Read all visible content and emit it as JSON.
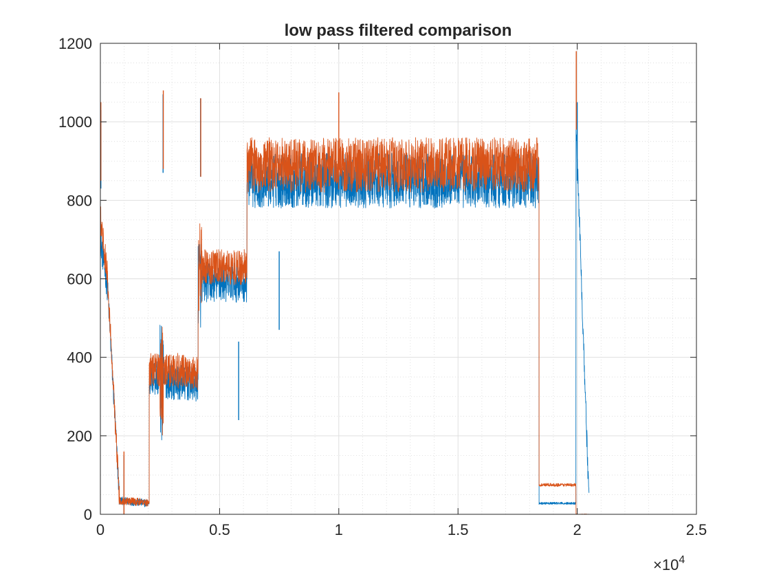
{
  "chart_data": {
    "type": "line",
    "title": "low pass filtered comparison",
    "xlabel": "",
    "ylabel": "",
    "xlim": [
      0,
      25000
    ],
    "ylim": [
      0,
      1200
    ],
    "x_ticks": [
      0,
      5000,
      10000,
      15000,
      20000,
      25000
    ],
    "x_tick_labels": [
      "0",
      "0.5",
      "1",
      "1.5",
      "2",
      "2.5"
    ],
    "x_exponent_label": "×10",
    "x_exponent_power": "4",
    "y_ticks": [
      0,
      200,
      400,
      600,
      800,
      1000,
      1200
    ],
    "y_tick_labels": [
      "0",
      "200",
      "400",
      "600",
      "800",
      "1000",
      "1200"
    ],
    "grid": true,
    "minor_grid": true,
    "box": true,
    "series": [
      {
        "color": "#0072BD",
        "segments": [
          {
            "x": [
              0,
              300
            ],
            "base": [
              700,
              580
            ],
            "noise": 40
          },
          {
            "x": [
              300,
              800
            ],
            "base": [
              580,
              40
            ],
            "noise": 30
          },
          {
            "x": [
              800,
              2000
            ],
            "base": [
              35,
              28
            ],
            "noise": 10
          },
          {
            "x": [
              2000,
              2050
            ],
            "base": [
              28,
              28
            ],
            "noise": 3
          },
          {
            "x": [
              2050,
              2500
            ],
            "base": [
              350,
              350
            ],
            "noise": 50
          },
          {
            "x": [
              2500,
              2650
            ],
            "base": [
              350,
              300
            ],
            "noise": 150
          },
          {
            "x": [
              2650,
              4100
            ],
            "base": [
              340,
              330
            ],
            "noise": 45
          },
          {
            "x": [
              4100,
              4250
            ],
            "base": [
              600,
              590
            ],
            "noise": 120
          },
          {
            "x": [
              4250,
              6150
            ],
            "base": [
              590,
              590
            ],
            "noise": 50
          },
          {
            "x": [
              6150,
              18400
            ],
            "base": [
              850,
              850
            ],
            "noise": 70
          },
          {
            "x": [
              18400,
              19950
            ],
            "base": [
              28,
              28
            ],
            "noise": 3
          },
          {
            "x": [
              19950,
              20500
            ],
            "base": [
              1000,
              20
            ],
            "noise": 30
          }
        ],
        "spikes": [
          {
            "x": 20,
            "y": 1030
          },
          {
            "x": 990,
            "y": 150
          },
          {
            "x": 2630,
            "y": 1070
          },
          {
            "x": 4200,
            "y": 1060
          },
          {
            "x": 7500,
            "y": 670
          },
          {
            "x": 5800,
            "y": 440
          },
          {
            "x": 20000,
            "y": 1050
          }
        ]
      },
      {
        "color": "#D95319",
        "segments": [
          {
            "x": [
              0,
              300
            ],
            "base": [
              760,
              600
            ],
            "noise": 40
          },
          {
            "x": [
              300,
              800
            ],
            "base": [
              600,
              40
            ],
            "noise": 30
          },
          {
            "x": [
              800,
              2000
            ],
            "base": [
              35,
              30
            ],
            "noise": 10
          },
          {
            "x": [
              2000,
              2050
            ],
            "base": [
              30,
              30
            ],
            "noise": 3
          },
          {
            "x": [
              2050,
              2500
            ],
            "base": [
              370,
              370
            ],
            "noise": 45
          },
          {
            "x": [
              2500,
              2650
            ],
            "base": [
              370,
              330
            ],
            "noise": 150
          },
          {
            "x": [
              2650,
              4100
            ],
            "base": [
              370,
              360
            ],
            "noise": 45
          },
          {
            "x": [
              4100,
              4250
            ],
            "base": [
              630,
              620
            ],
            "noise": 120
          },
          {
            "x": [
              4250,
              6150
            ],
            "base": [
              630,
              630
            ],
            "noise": 45
          },
          {
            "x": [
              6150,
              18400
            ],
            "base": [
              890,
              890
            ],
            "noise": 70
          },
          {
            "x": [
              18400,
              19950
            ],
            "base": [
              75,
              75
            ],
            "noise": 4
          },
          {
            "x": [
              19950,
              20500
            ],
            "base": [
              0,
              0
            ],
            "noise": 1
          }
        ],
        "spikes": [
          {
            "x": 20,
            "y": 1050
          },
          {
            "x": 990,
            "y": 160
          },
          {
            "x": 2640,
            "y": 1080
          },
          {
            "x": 4210,
            "y": 1060
          },
          {
            "x": 10000,
            "y": 1075
          },
          {
            "x": 19960,
            "y": 1180
          }
        ]
      }
    ]
  }
}
